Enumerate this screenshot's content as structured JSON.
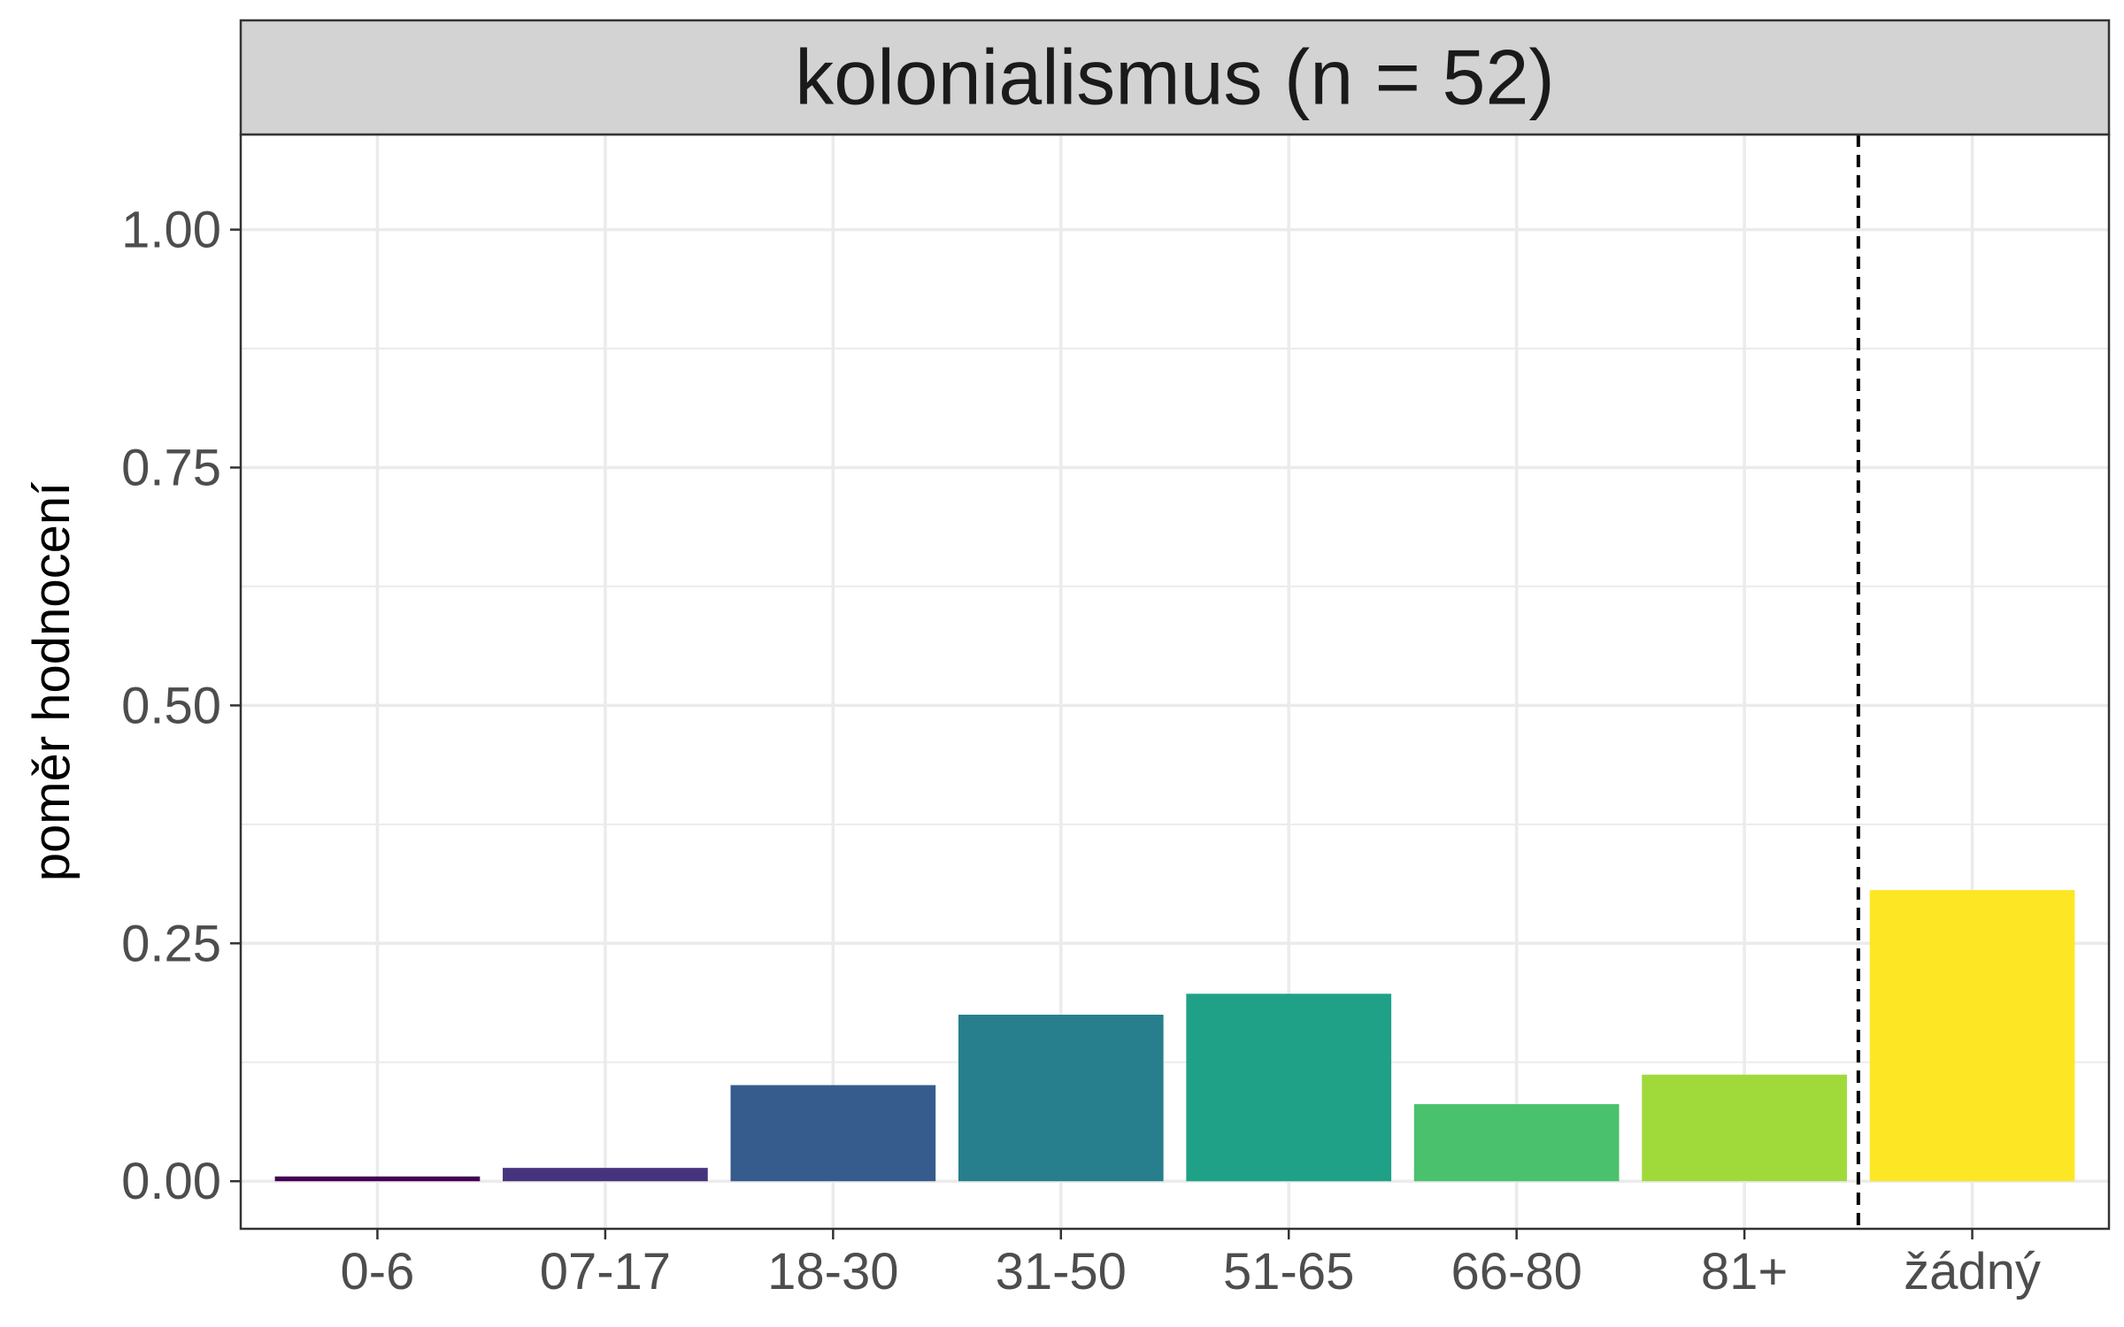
{
  "chart_data": {
    "type": "bar",
    "title": "kolonialismus (n = 52)",
    "xlabel": "",
    "ylabel": "poměr hodnocení",
    "categories": [
      "0-6",
      "07-17",
      "18-30",
      "31-50",
      "51-65",
      "66-80",
      "81+",
      "žádný"
    ],
    "values": [
      0.005,
      0.014,
      0.101,
      0.175,
      0.197,
      0.081,
      0.112,
      0.306
    ],
    "colors": [
      "#440154",
      "#46337E",
      "#365C8D",
      "#277F8E",
      "#1FA187",
      "#4AC16D",
      "#9FDA3A",
      "#FDE725"
    ],
    "ylim": [
      -0.05,
      1.1
    ],
    "yticks": [
      0,
      0.25,
      0.5,
      0.75,
      1.0
    ],
    "ytick_labels": [
      "0.00",
      "0.25",
      "0.50",
      "0.75",
      "1.00"
    ],
    "yminor": [
      0.125,
      0.375,
      0.625,
      0.875
    ],
    "grid": true,
    "separator_after_category": "81+",
    "separator_style": "dashed"
  },
  "colors": {
    "panel_background": "#FFFFFF",
    "strip_background": "#D3D3D3",
    "grid": "#EBEBEB",
    "border": "#333333",
    "tick_text": "#4D4D4D"
  }
}
